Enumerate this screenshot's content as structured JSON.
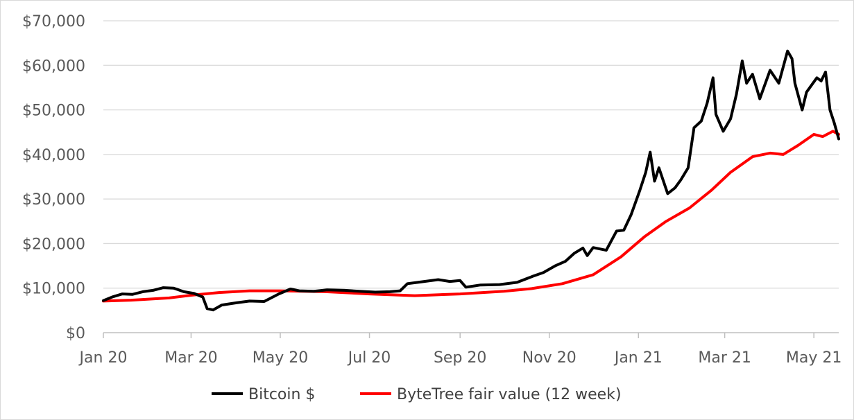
{
  "chart_data": {
    "type": "line",
    "title": "",
    "xlabel": "",
    "ylabel": "",
    "x_tick_labels": [
      "Jan 20",
      "Mar 20",
      "May 20",
      "Jul 20",
      "Sep 20",
      "Nov 20",
      "Jan 21",
      "Mar 21",
      "May 21"
    ],
    "x_tick_dates": [
      "2020-01-01",
      "2020-03-01",
      "2020-05-01",
      "2020-07-01",
      "2020-09-01",
      "2020-11-01",
      "2021-01-01",
      "2021-03-01",
      "2021-05-01"
    ],
    "xlim": [
      "2020-01-01",
      "2021-05-18"
    ],
    "ylim": [
      0,
      70000
    ],
    "y_ticks": [
      0,
      10000,
      20000,
      30000,
      40000,
      50000,
      60000,
      70000
    ],
    "y_tick_labels": [
      "$0",
      "$10,000",
      "$20,000",
      "$30,000",
      "$40,000",
      "$50,000",
      "$60,000",
      "$70,000"
    ],
    "grid": "horizontal",
    "legend_position": "bottom",
    "series": [
      {
        "name": "Bitcoin $",
        "color": "#000000",
        "points": [
          [
            "2020-01-01",
            7200
          ],
          [
            "2020-01-07",
            8000
          ],
          [
            "2020-01-14",
            8700
          ],
          [
            "2020-01-21",
            8600
          ],
          [
            "2020-01-28",
            9200
          ],
          [
            "2020-02-04",
            9500
          ],
          [
            "2020-02-11",
            10100
          ],
          [
            "2020-02-18",
            10000
          ],
          [
            "2020-02-25",
            9200
          ],
          [
            "2020-03-03",
            8800
          ],
          [
            "2020-03-09",
            8000
          ],
          [
            "2020-03-12",
            5400
          ],
          [
            "2020-03-16",
            5100
          ],
          [
            "2020-03-22",
            6200
          ],
          [
            "2020-04-01",
            6700
          ],
          [
            "2020-04-10",
            7100
          ],
          [
            "2020-04-20",
            7000
          ],
          [
            "2020-04-30",
            8700
          ],
          [
            "2020-05-08",
            9800
          ],
          [
            "2020-05-14",
            9400
          ],
          [
            "2020-05-24",
            9300
          ],
          [
            "2020-06-02",
            9600
          ],
          [
            "2020-06-14",
            9500
          ],
          [
            "2020-06-24",
            9300
          ],
          [
            "2020-07-05",
            9100
          ],
          [
            "2020-07-15",
            9200
          ],
          [
            "2020-07-22",
            9400
          ],
          [
            "2020-07-27",
            11000
          ],
          [
            "2020-08-03",
            11300
          ],
          [
            "2020-08-17",
            11900
          ],
          [
            "2020-08-25",
            11500
          ],
          [
            "2020-09-01",
            11700
          ],
          [
            "2020-09-05",
            10200
          ],
          [
            "2020-09-15",
            10700
          ],
          [
            "2020-09-28",
            10800
          ],
          [
            "2020-10-10",
            11300
          ],
          [
            "2020-10-21",
            12700
          ],
          [
            "2020-10-28",
            13500
          ],
          [
            "2020-11-05",
            15000
          ],
          [
            "2020-11-12",
            16000
          ],
          [
            "2020-11-18",
            17800
          ],
          [
            "2020-11-24",
            19000
          ],
          [
            "2020-11-27",
            17300
          ],
          [
            "2020-12-01",
            19100
          ],
          [
            "2020-12-10",
            18500
          ],
          [
            "2020-12-17",
            22800
          ],
          [
            "2020-12-22",
            23000
          ],
          [
            "2020-12-27",
            26500
          ],
          [
            "2021-01-02",
            32000
          ],
          [
            "2021-01-06",
            36000
          ],
          [
            "2021-01-09",
            40500
          ],
          [
            "2021-01-12",
            34000
          ],
          [
            "2021-01-15",
            37000
          ],
          [
            "2021-01-21",
            31200
          ],
          [
            "2021-01-26",
            32500
          ],
          [
            "2021-01-30",
            34300
          ],
          [
            "2021-02-04",
            37000
          ],
          [
            "2021-02-08",
            46000
          ],
          [
            "2021-02-13",
            47500
          ],
          [
            "2021-02-17",
            51500
          ],
          [
            "2021-02-21",
            57200
          ],
          [
            "2021-02-23",
            49000
          ],
          [
            "2021-02-28",
            45200
          ],
          [
            "2021-03-05",
            48000
          ],
          [
            "2021-03-09",
            53500
          ],
          [
            "2021-03-13",
            61000
          ],
          [
            "2021-03-16",
            56000
          ],
          [
            "2021-03-20",
            58000
          ],
          [
            "2021-03-25",
            52500
          ],
          [
            "2021-04-01",
            58900
          ],
          [
            "2021-04-07",
            56000
          ],
          [
            "2021-04-13",
            63200
          ],
          [
            "2021-04-16",
            61500
          ],
          [
            "2021-04-18",
            56000
          ],
          [
            "2021-04-23",
            50000
          ],
          [
            "2021-04-26",
            54000
          ],
          [
            "2021-05-03",
            57200
          ],
          [
            "2021-05-06",
            56500
          ],
          [
            "2021-05-09",
            58500
          ],
          [
            "2021-05-12",
            50000
          ],
          [
            "2021-05-15",
            47000
          ],
          [
            "2021-05-18",
            43500
          ]
        ]
      },
      {
        "name": "ByteTree fair value (12 week)",
        "color": "#ff0000",
        "points": [
          [
            "2020-01-01",
            7100
          ],
          [
            "2020-01-20",
            7300
          ],
          [
            "2020-02-15",
            7800
          ],
          [
            "2020-03-01",
            8400
          ],
          [
            "2020-03-20",
            9000
          ],
          [
            "2020-04-10",
            9400
          ],
          [
            "2020-05-01",
            9400
          ],
          [
            "2020-06-01",
            9200
          ],
          [
            "2020-07-01",
            8700
          ],
          [
            "2020-08-01",
            8300
          ],
          [
            "2020-09-01",
            8700
          ],
          [
            "2020-10-01",
            9300
          ],
          [
            "2020-10-20",
            9900
          ],
          [
            "2020-11-10",
            11000
          ],
          [
            "2020-12-01",
            13000
          ],
          [
            "2020-12-20",
            17000
          ],
          [
            "2021-01-05",
            21500
          ],
          [
            "2021-01-20",
            25000
          ],
          [
            "2021-02-05",
            28000
          ],
          [
            "2021-02-20",
            32000
          ],
          [
            "2021-03-05",
            36000
          ],
          [
            "2021-03-20",
            39500
          ],
          [
            "2021-04-01",
            40300
          ],
          [
            "2021-04-10",
            40000
          ],
          [
            "2021-04-20",
            42000
          ],
          [
            "2021-05-01",
            44500
          ],
          [
            "2021-05-07",
            44000
          ],
          [
            "2021-05-14",
            45200
          ],
          [
            "2021-05-18",
            44500
          ]
        ]
      }
    ]
  }
}
